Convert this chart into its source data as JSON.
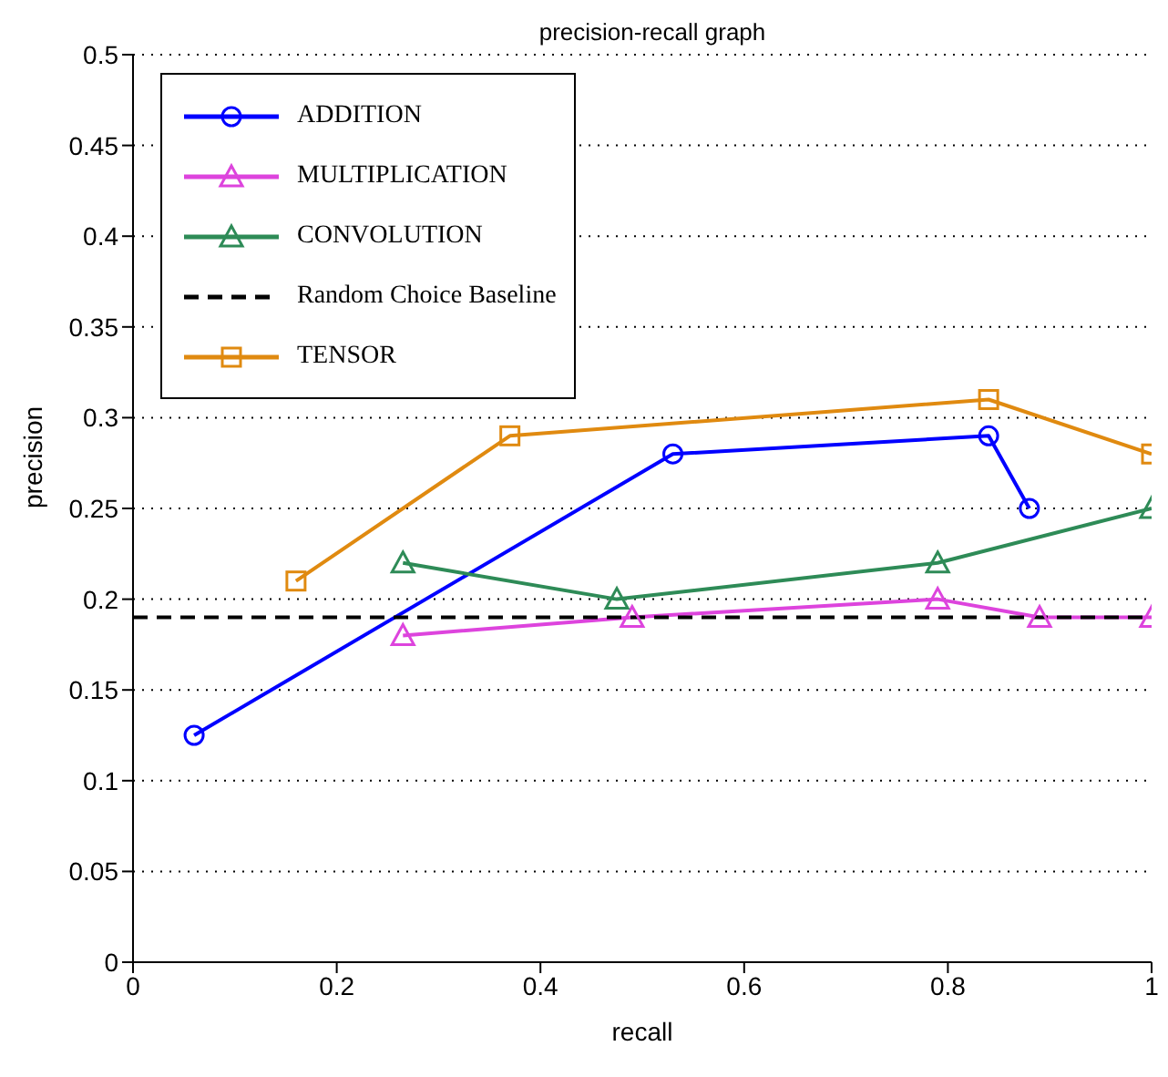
{
  "chart_data": {
    "type": "line",
    "title": "precision-recall graph",
    "xlabel": "recall",
    "ylabel": "precision",
    "xlim": [
      0,
      1
    ],
    "xticks": [
      0,
      0.2,
      0.4,
      0.6,
      0.8,
      1
    ],
    "ylim": [
      0,
      0.5
    ],
    "yticks": [
      0,
      0.05,
      0.1,
      0.15,
      0.2,
      0.25,
      0.3,
      0.35,
      0.4,
      0.45,
      0.5
    ],
    "grid": "y",
    "legend": "top left",
    "series": [
      {
        "name": "ADDITION",
        "color": "#0000ff",
        "marker": "circle",
        "x": [
          0.06,
          0.53,
          0.84,
          0.88
        ],
        "values": [
          0.125,
          0.28,
          0.29,
          0.25
        ]
      },
      {
        "name": "MULTIPLICATION",
        "color": "#dd44dd",
        "marker": "triangle",
        "x": [
          0.265,
          0.49,
          0.79,
          0.89,
          1.0
        ],
        "values": [
          0.18,
          0.19,
          0.2,
          0.19,
          0.19
        ]
      },
      {
        "name": "CONVOLUTION",
        "color": "#2e8b57",
        "marker": "triangle",
        "x": [
          0.265,
          0.475,
          0.79,
          1.0
        ],
        "values": [
          0.22,
          0.2,
          0.22,
          0.25
        ]
      },
      {
        "name": "Random Choice Baseline",
        "color": "#000000",
        "marker": "none",
        "line_style": "dashed",
        "x": [
          0,
          1
        ],
        "values": [
          0.19,
          0.19
        ]
      },
      {
        "name": "TENSOR",
        "color": "#e08a10",
        "marker": "square",
        "x": [
          0.16,
          0.37,
          0.84,
          1.0
        ],
        "values": [
          0.21,
          0.29,
          0.31,
          0.28
        ]
      }
    ]
  }
}
